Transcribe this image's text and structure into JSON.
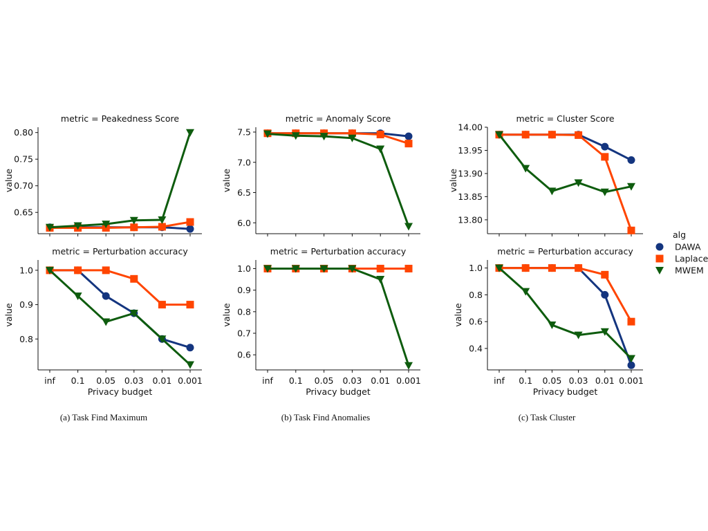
{
  "x_categories": [
    "inf",
    "0.1",
    "0.05",
    "0.03",
    "0.01",
    "0.001"
  ],
  "xlabel": "Privacy budget",
  "ylabel": "value",
  "legend": {
    "title": "alg",
    "placement": "center-right",
    "entries": [
      {
        "name": "DAWA",
        "marker": "circle",
        "color": "#14357f"
      },
      {
        "name": "Laplace",
        "marker": "square",
        "color": "#ff4500"
      },
      {
        "name": "MWEM",
        "marker": "triangle-down",
        "color": "#0e5c0e"
      }
    ]
  },
  "captions": [
    "(a) Task Find Maximum",
    "(b) Task Find Anomalies",
    "(c) Task Cluster"
  ],
  "chart_data": [
    {
      "type": "line",
      "title": "metric = Peakedness Score",
      "categories": [
        "inf",
        "0.1",
        "0.05",
        "0.03",
        "0.01",
        "0.001"
      ],
      "ylim": [
        0.61,
        0.81
      ],
      "yticks": [
        "0.65",
        "0.70",
        "0.75",
        "0.80"
      ],
      "ytick_values": [
        0.65,
        0.7,
        0.75,
        0.8
      ],
      "xlabel": "",
      "ylabel": "value",
      "series": [
        {
          "name": "DAWA",
          "values": [
            0.622,
            0.622,
            0.622,
            0.622,
            0.622,
            0.619
          ]
        },
        {
          "name": "Laplace",
          "values": [
            0.621,
            0.621,
            0.621,
            0.622,
            0.623,
            0.632
          ]
        },
        {
          "name": "MWEM",
          "values": [
            0.622,
            0.625,
            0.628,
            0.635,
            0.636,
            0.8
          ]
        }
      ]
    },
    {
      "type": "line",
      "title": "metric = Anomaly Score",
      "categories": [
        "inf",
        "0.1",
        "0.05",
        "0.03",
        "0.01",
        "0.001"
      ],
      "ylim": [
        5.82,
        7.58
      ],
      "yticks": [
        "6.0",
        "6.5",
        "7.0",
        "7.5"
      ],
      "ytick_values": [
        6.0,
        6.5,
        7.0,
        7.5
      ],
      "xlabel": "",
      "ylabel": "value",
      "series": [
        {
          "name": "DAWA",
          "values": [
            7.48,
            7.48,
            7.48,
            7.48,
            7.48,
            7.43
          ]
        },
        {
          "name": "Laplace",
          "values": [
            7.48,
            7.48,
            7.48,
            7.48,
            7.46,
            7.31
          ]
        },
        {
          "name": "MWEM",
          "values": [
            7.47,
            7.44,
            7.43,
            7.4,
            7.22,
            5.94
          ]
        }
      ]
    },
    {
      "type": "line",
      "title": "metric = Cluster Score",
      "categories": [
        "inf",
        "0.1",
        "0.05",
        "0.03",
        "0.01",
        "0.001"
      ],
      "ylim": [
        13.77,
        14.0
      ],
      "yticks": [
        "13.80",
        "13.85",
        "13.90",
        "13.95",
        "14.00"
      ],
      "ytick_values": [
        13.8,
        13.85,
        13.9,
        13.95,
        14.0
      ],
      "xlabel": "",
      "ylabel": "value",
      "series": [
        {
          "name": "DAWA",
          "values": [
            13.984,
            13.984,
            13.984,
            13.984,
            13.958,
            13.929
          ]
        },
        {
          "name": "Laplace",
          "values": [
            13.984,
            13.984,
            13.984,
            13.983,
            13.936,
            13.777
          ]
        },
        {
          "name": "MWEM",
          "values": [
            13.984,
            13.911,
            13.862,
            13.88,
            13.86,
            13.872
          ]
        }
      ]
    },
    {
      "type": "line",
      "title": "metric = Perturbation accuracy",
      "categories": [
        "inf",
        "0.1",
        "0.05",
        "0.03",
        "0.01",
        "0.001"
      ],
      "ylim": [
        0.71,
        1.03
      ],
      "yticks": [
        "0.8",
        "0.9",
        "1.0"
      ],
      "ytick_values": [
        0.8,
        0.9,
        1.0
      ],
      "xlabel": "Privacy budget",
      "ylabel": "value",
      "series": [
        {
          "name": "DAWA",
          "values": [
            1.0,
            1.0,
            0.925,
            0.875,
            0.8,
            0.775
          ]
        },
        {
          "name": "Laplace",
          "values": [
            1.0,
            1.0,
            1.0,
            0.975,
            0.9,
            0.9
          ]
        },
        {
          "name": "MWEM",
          "values": [
            1.0,
            0.925,
            0.85,
            0.875,
            0.8,
            0.725
          ]
        }
      ]
    },
    {
      "type": "line",
      "title": "metric = Perturbation accuracy",
      "categories": [
        "inf",
        "0.1",
        "0.05",
        "0.03",
        "0.01",
        "0.001"
      ],
      "ylim": [
        0.53,
        1.04
      ],
      "yticks": [
        "0.6",
        "0.7",
        "0.8",
        "0.9",
        "1.0"
      ],
      "ytick_values": [
        0.6,
        0.7,
        0.8,
        0.9,
        1.0
      ],
      "xlabel": "Privacy budget",
      "ylabel": "value",
      "series": [
        {
          "name": "DAWA",
          "values": [
            1.0,
            1.0,
            1.0,
            1.0,
            1.0,
            1.0
          ]
        },
        {
          "name": "Laplace",
          "values": [
            1.0,
            1.0,
            1.0,
            1.0,
            1.0,
            1.0
          ]
        },
        {
          "name": "MWEM",
          "values": [
            1.0,
            1.0,
            1.0,
            1.0,
            0.95,
            0.55
          ]
        }
      ]
    },
    {
      "type": "line",
      "title": "metric = Perturbation accuracy",
      "categories": [
        "inf",
        "0.1",
        "0.05",
        "0.03",
        "0.01",
        "0.001"
      ],
      "ylim": [
        0.24,
        1.06
      ],
      "yticks": [
        "0.4",
        "0.6",
        "0.8",
        "1.0"
      ],
      "ytick_values": [
        0.4,
        0.6,
        0.8,
        1.0
      ],
      "xlabel": "Privacy budget",
      "ylabel": "value",
      "series": [
        {
          "name": "DAWA",
          "values": [
            1.0,
            1.0,
            1.0,
            1.0,
            0.8,
            0.275
          ]
        },
        {
          "name": "Laplace",
          "values": [
            1.0,
            1.0,
            1.0,
            1.0,
            0.95,
            0.6
          ]
        },
        {
          "name": "MWEM",
          "values": [
            1.0,
            0.825,
            0.575,
            0.5,
            0.525,
            0.325
          ]
        }
      ]
    }
  ]
}
